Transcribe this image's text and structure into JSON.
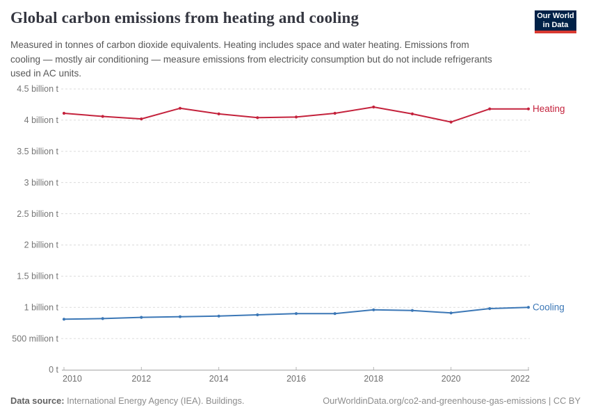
{
  "header": {
    "title": "Global carbon emissions from heating and cooling",
    "subtitle": "Measured in tonnes of carbon dioxide equivalents. Heating includes space and water heating. Emissions from cooling — mostly air conditioning — measure emissions from electricity consumption but do not include refrigerants used in AC units.",
    "logo": {
      "line1": "Our World",
      "line2": "in Data",
      "bg_color": "#002147",
      "stripe_color": "#D93A31"
    }
  },
  "chart_data": {
    "type": "line",
    "title": "Global carbon emissions from heating and cooling",
    "x": [
      2010,
      2011,
      2012,
      2013,
      2014,
      2015,
      2016,
      2017,
      2018,
      2019,
      2020,
      2021,
      2022
    ],
    "series": [
      {
        "name": "Heating",
        "color": "#C4223C",
        "values": [
          4.11,
          4.06,
          4.02,
          4.19,
          4.1,
          4.04,
          4.05,
          4.11,
          4.21,
          4.1,
          3.97,
          4.18,
          4.18
        ]
      },
      {
        "name": "Cooling",
        "color": "#3B77B6",
        "values": [
          0.81,
          0.82,
          0.84,
          0.85,
          0.86,
          0.88,
          0.9,
          0.9,
          0.96,
          0.95,
          0.91,
          0.98,
          1.0
        ]
      }
    ],
    "values_unit": "billion tonnes of CO2 equivalents",
    "ylim": [
      0,
      4.5
    ],
    "xlim": [
      2010,
      2022
    ],
    "ytick_values": [
      0,
      0.5,
      1,
      1.5,
      2,
      2.5,
      3,
      3.5,
      4,
      4.5
    ],
    "ytick_labels": [
      "0 t",
      "500 million t",
      "1 billion t",
      "1.5 billion t",
      "2 billion t",
      "2.5 billion t",
      "3 billion t",
      "3.5 billion t",
      "4 billion t",
      "4.5 billion t"
    ],
    "xtick_values": [
      2010,
      2012,
      2014,
      2016,
      2018,
      2020,
      2022
    ],
    "xtick_labels": [
      "2010",
      "2012",
      "2014",
      "2016",
      "2018",
      "2020",
      "2022"
    ],
    "grid": true,
    "gridline_style": "dashed",
    "legend_position": "series-labels-right-of-lines",
    "colors": {
      "grid": "#DBDBDB",
      "axis": "#A5A5A5",
      "tick_mark": "#B5B5B5",
      "ytick_label": "#767676",
      "xtick_label": "#6E6E6E"
    }
  },
  "footer": {
    "source_label": "Data source:",
    "source_text": " International Energy Agency (IEA). Buildings.",
    "link_text": "OurWorldinData.org/co2-and-greenhouse-gas-emissions | CC BY"
  }
}
